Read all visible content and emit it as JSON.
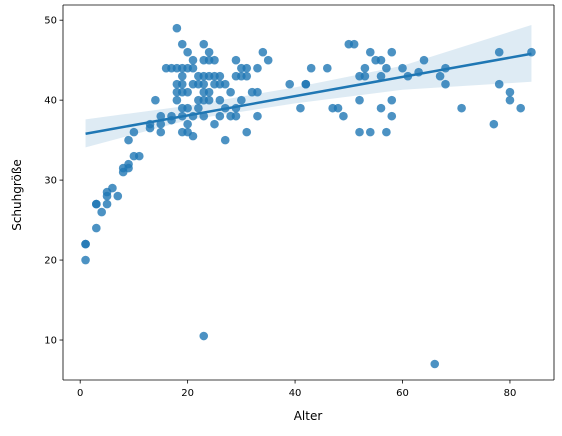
{
  "chart_data": {
    "type": "scatter",
    "title": "",
    "xlabel": "Alter",
    "ylabel": "Schuhgröße",
    "xlim": [
      -3.2,
      88.2
    ],
    "ylim": [
      5.0,
      51.9
    ],
    "xticks": [
      0,
      20,
      40,
      60,
      80
    ],
    "yticks": [
      10,
      20,
      30,
      40,
      50
    ],
    "grid": false,
    "legend": "none",
    "colors": {
      "points": "#1f77b4",
      "line": "#1f77b4",
      "band": "#1f77b4"
    },
    "points": [
      {
        "x": 1,
        "y": 22
      },
      {
        "x": 1,
        "y": 22
      },
      {
        "x": 1,
        "y": 20
      },
      {
        "x": 3,
        "y": 27
      },
      {
        "x": 3,
        "y": 27
      },
      {
        "x": 3,
        "y": 24
      },
      {
        "x": 4,
        "y": 26
      },
      {
        "x": 5,
        "y": 28.5
      },
      {
        "x": 5,
        "y": 28
      },
      {
        "x": 5,
        "y": 27
      },
      {
        "x": 6,
        "y": 29
      },
      {
        "x": 7,
        "y": 28
      },
      {
        "x": 8,
        "y": 31
      },
      {
        "x": 8,
        "y": 31.5
      },
      {
        "x": 9,
        "y": 32
      },
      {
        "x": 9,
        "y": 35
      },
      {
        "x": 9,
        "y": 31.5
      },
      {
        "x": 10,
        "y": 33
      },
      {
        "x": 10,
        "y": 36
      },
      {
        "x": 11,
        "y": 33
      },
      {
        "x": 13,
        "y": 37
      },
      {
        "x": 13,
        "y": 36.5
      },
      {
        "x": 14,
        "y": 40
      },
      {
        "x": 15,
        "y": 36
      },
      {
        "x": 15,
        "y": 38
      },
      {
        "x": 15,
        "y": 37
      },
      {
        "x": 16,
        "y": 44
      },
      {
        "x": 17,
        "y": 44
      },
      {
        "x": 17,
        "y": 38
      },
      {
        "x": 17,
        "y": 37.5
      },
      {
        "x": 18,
        "y": 49
      },
      {
        "x": 18,
        "y": 44
      },
      {
        "x": 18,
        "y": 42
      },
      {
        "x": 18,
        "y": 41
      },
      {
        "x": 18,
        "y": 40
      },
      {
        "x": 19,
        "y": 47
      },
      {
        "x": 19,
        "y": 44
      },
      {
        "x": 19,
        "y": 43
      },
      {
        "x": 19,
        "y": 42
      },
      {
        "x": 19,
        "y": 41
      },
      {
        "x": 19,
        "y": 39
      },
      {
        "x": 19,
        "y": 38
      },
      {
        "x": 19,
        "y": 36
      },
      {
        "x": 20,
        "y": 44
      },
      {
        "x": 20,
        "y": 46
      },
      {
        "x": 20,
        "y": 41
      },
      {
        "x": 20,
        "y": 39
      },
      {
        "x": 20,
        "y": 37
      },
      {
        "x": 20,
        "y": 36
      },
      {
        "x": 21,
        "y": 45
      },
      {
        "x": 21,
        "y": 42
      },
      {
        "x": 21,
        "y": 44
      },
      {
        "x": 21,
        "y": 38
      },
      {
        "x": 21,
        "y": 35.5
      },
      {
        "x": 22,
        "y": 43
      },
      {
        "x": 22,
        "y": 42
      },
      {
        "x": 22,
        "y": 40
      },
      {
        "x": 22,
        "y": 39
      },
      {
        "x": 23,
        "y": 47
      },
      {
        "x": 23,
        "y": 45
      },
      {
        "x": 23,
        "y": 43
      },
      {
        "x": 23,
        "y": 42
      },
      {
        "x": 23,
        "y": 41
      },
      {
        "x": 23,
        "y": 40
      },
      {
        "x": 23,
        "y": 38
      },
      {
        "x": 23,
        "y": 10.5
      },
      {
        "x": 24,
        "y": 46
      },
      {
        "x": 24,
        "y": 45
      },
      {
        "x": 24,
        "y": 43
      },
      {
        "x": 24,
        "y": 41
      },
      {
        "x": 24,
        "y": 40
      },
      {
        "x": 25,
        "y": 45
      },
      {
        "x": 25,
        "y": 43
      },
      {
        "x": 25,
        "y": 42
      },
      {
        "x": 25,
        "y": 37
      },
      {
        "x": 26,
        "y": 43
      },
      {
        "x": 26,
        "y": 42
      },
      {
        "x": 26,
        "y": 40
      },
      {
        "x": 26,
        "y": 38
      },
      {
        "x": 27,
        "y": 42
      },
      {
        "x": 27,
        "y": 39
      },
      {
        "x": 27,
        "y": 35
      },
      {
        "x": 28,
        "y": 38
      },
      {
        "x": 28,
        "y": 41
      },
      {
        "x": 29,
        "y": 45
      },
      {
        "x": 29,
        "y": 43
      },
      {
        "x": 29,
        "y": 39
      },
      {
        "x": 29,
        "y": 38
      },
      {
        "x": 30,
        "y": 44
      },
      {
        "x": 30,
        "y": 43
      },
      {
        "x": 30,
        "y": 40
      },
      {
        "x": 31,
        "y": 44
      },
      {
        "x": 31,
        "y": 43
      },
      {
        "x": 31,
        "y": 36
      },
      {
        "x": 32,
        "y": 41
      },
      {
        "x": 33,
        "y": 41
      },
      {
        "x": 33,
        "y": 38
      },
      {
        "x": 33,
        "y": 44
      },
      {
        "x": 34,
        "y": 46
      },
      {
        "x": 35,
        "y": 45
      },
      {
        "x": 39,
        "y": 42
      },
      {
        "x": 41,
        "y": 39
      },
      {
        "x": 42,
        "y": 42
      },
      {
        "x": 42,
        "y": 42
      },
      {
        "x": 43,
        "y": 44
      },
      {
        "x": 46,
        "y": 44
      },
      {
        "x": 47,
        "y": 39
      },
      {
        "x": 48,
        "y": 39
      },
      {
        "x": 49,
        "y": 38
      },
      {
        "x": 50,
        "y": 47
      },
      {
        "x": 51,
        "y": 47
      },
      {
        "x": 52,
        "y": 43
      },
      {
        "x": 52,
        "y": 40
      },
      {
        "x": 52,
        "y": 36
      },
      {
        "x": 53,
        "y": 44
      },
      {
        "x": 53,
        "y": 43
      },
      {
        "x": 54,
        "y": 46
      },
      {
        "x": 54,
        "y": 36
      },
      {
        "x": 55,
        "y": 45
      },
      {
        "x": 56,
        "y": 45
      },
      {
        "x": 56,
        "y": 43
      },
      {
        "x": 56,
        "y": 39
      },
      {
        "x": 57,
        "y": 44
      },
      {
        "x": 57,
        "y": 36
      },
      {
        "x": 58,
        "y": 46
      },
      {
        "x": 58,
        "y": 40
      },
      {
        "x": 58,
        "y": 38
      },
      {
        "x": 60,
        "y": 44
      },
      {
        "x": 61,
        "y": 43
      },
      {
        "x": 63,
        "y": 43.5
      },
      {
        "x": 64,
        "y": 45
      },
      {
        "x": 66,
        "y": 7
      },
      {
        "x": 67,
        "y": 43
      },
      {
        "x": 68,
        "y": 44
      },
      {
        "x": 68,
        "y": 42
      },
      {
        "x": 71,
        "y": 39
      },
      {
        "x": 77,
        "y": 37
      },
      {
        "x": 78,
        "y": 46
      },
      {
        "x": 78,
        "y": 42
      },
      {
        "x": 80,
        "y": 41
      },
      {
        "x": 80,
        "y": 40
      },
      {
        "x": 82,
        "y": 39
      },
      {
        "x": 84,
        "y": 46
      }
    ],
    "regression": {
      "x": [
        1,
        84
      ],
      "y": [
        35.8,
        45.8
      ]
    },
    "confidence_band": {
      "x": [
        1,
        20,
        40,
        60,
        84
      ],
      "upper": [
        37.6,
        39.3,
        41.6,
        44.3,
        49.4
      ],
      "lower": [
        34.1,
        37.5,
        39.6,
        41.3,
        42.3
      ]
    }
  }
}
